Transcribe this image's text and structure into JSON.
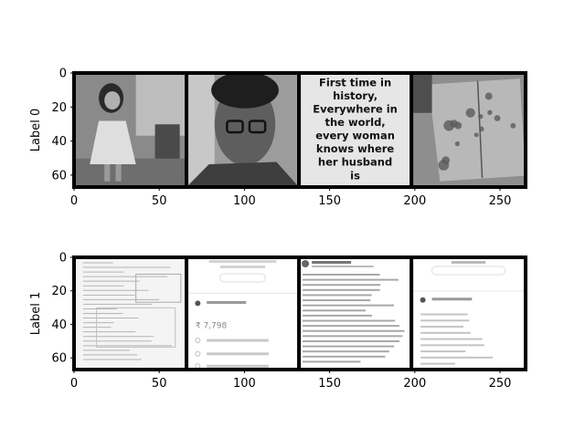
{
  "chart_data": [
    {
      "type": "heatmap",
      "ylabel": "Label 0",
      "xlim": [
        0,
        265
      ],
      "ylim": [
        67,
        0
      ],
      "xticks": [
        0,
        50,
        100,
        150,
        200,
        250
      ],
      "yticks": [
        0,
        20,
        40,
        60
      ],
      "grid": false,
      "tiles": [
        {
          "x_start": 0,
          "x_end": 66,
          "content": "photo-person-standing"
        },
        {
          "x_start": 66,
          "x_end": 132,
          "content": "photo-man-with-glasses"
        },
        {
          "x_start": 132,
          "x_end": 198,
          "content": "text-meme",
          "text": "First time in history, Everywhere in the world, every woman knows where her husband is"
        },
        {
          "x_start": 198,
          "x_end": 265,
          "content": "photo-book-on-table"
        }
      ]
    },
    {
      "type": "heatmap",
      "ylabel": "Label 1",
      "xlim": [
        0,
        265
      ],
      "ylim": [
        67,
        0
      ],
      "xticks": [
        0,
        50,
        100,
        150,
        200,
        250
      ],
      "yticks": [
        0,
        20,
        40,
        60
      ],
      "grid": false,
      "tiles": [
        {
          "x_start": 0,
          "x_end": 66,
          "content": "scanned-form-document"
        },
        {
          "x_start": 66,
          "x_end": 132,
          "content": "payment-receipt-screenshot",
          "text": "₹ 7,798"
        },
        {
          "x_start": 132,
          "x_end": 198,
          "content": "social-post-screenshot"
        },
        {
          "x_start": 198,
          "x_end": 265,
          "content": "payment-app-screenshot"
        }
      ]
    }
  ]
}
